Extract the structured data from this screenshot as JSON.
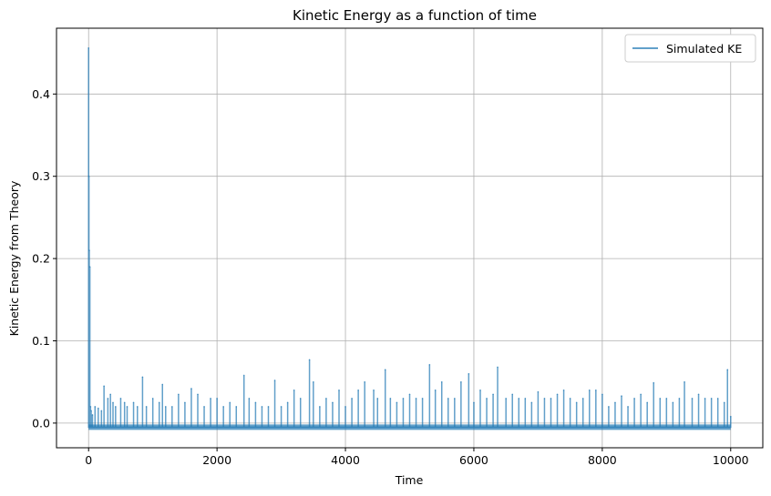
{
  "chart_data": {
    "type": "line",
    "title": "Kinetic Energy as a function of time",
    "xlabel": "Time",
    "ylabel": "Kinetic Energy from Theory",
    "xlim": [
      -500,
      10500
    ],
    "ylim": [
      -0.03,
      0.48
    ],
    "xticks": [
      0,
      2000,
      4000,
      6000,
      8000,
      10000
    ],
    "xtick_labels": [
      "0",
      "2000",
      "4000",
      "6000",
      "8000",
      "10000"
    ],
    "yticks": [
      0.0,
      0.1,
      0.2,
      0.3,
      0.4
    ],
    "ytick_labels": [
      "0.0",
      "0.1",
      "0.2",
      "0.3",
      "0.4"
    ],
    "grid": true,
    "legend_position": "top-right",
    "series": [
      {
        "name": "Simulated KE",
        "color": "#1f77b4",
        "alpha": 0.7,
        "baseline": -0.005,
        "x": [
          0,
          5,
          10,
          20,
          30,
          40,
          60,
          100,
          150,
          200,
          240,
          300,
          340,
          380,
          420,
          500,
          560,
          600,
          700,
          760,
          840,
          900,
          1000,
          1100,
          1150,
          1200,
          1300,
          1400,
          1500,
          1600,
          1700,
          1800,
          1900,
          2000,
          2100,
          2200,
          2300,
          2420,
          2500,
          2600,
          2700,
          2800,
          2900,
          3000,
          3100,
          3200,
          3300,
          3440,
          3500,
          3600,
          3700,
          3800,
          3900,
          4000,
          4100,
          4200,
          4300,
          4440,
          4500,
          4620,
          4700,
          4800,
          4900,
          5000,
          5100,
          5200,
          5310,
          5400,
          5500,
          5600,
          5700,
          5800,
          5920,
          6000,
          6100,
          6200,
          6300,
          6370,
          6500,
          6600,
          6700,
          6800,
          6900,
          7000,
          7100,
          7200,
          7300,
          7400,
          7500,
          7600,
          7700,
          7800,
          7900,
          8000,
          8100,
          8200,
          8300,
          8400,
          8500,
          8600,
          8700,
          8800,
          8900,
          9000,
          9100,
          9200,
          9280,
          9400,
          9500,
          9600,
          9700,
          9800,
          9900,
          9950,
          10000
        ],
        "y": [
          0.456,
          0.3,
          0.21,
          0.19,
          0.02,
          0.015,
          0.01,
          0.02,
          0.018,
          0.015,
          0.045,
          0.03,
          0.035,
          0.025,
          0.02,
          0.03,
          0.025,
          0.02,
          0.025,
          0.02,
          0.056,
          0.02,
          0.03,
          0.025,
          0.047,
          0.02,
          0.02,
          0.035,
          0.025,
          0.042,
          0.035,
          0.02,
          0.03,
          0.03,
          0.02,
          0.025,
          0.02,
          0.058,
          0.03,
          0.025,
          0.02,
          0.02,
          0.052,
          0.02,
          0.025,
          0.04,
          0.03,
          0.077,
          0.05,
          0.02,
          0.03,
          0.025,
          0.04,
          0.02,
          0.03,
          0.04,
          0.05,
          0.04,
          0.03,
          0.065,
          0.03,
          0.025,
          0.03,
          0.035,
          0.03,
          0.03,
          0.071,
          0.04,
          0.05,
          0.03,
          0.03,
          0.05,
          0.06,
          0.025,
          0.04,
          0.03,
          0.035,
          0.068,
          0.03,
          0.035,
          0.03,
          0.03,
          0.025,
          0.038,
          0.03,
          0.03,
          0.035,
          0.04,
          0.03,
          0.025,
          0.03,
          0.04,
          0.04,
          0.035,
          0.02,
          0.025,
          0.033,
          0.02,
          0.03,
          0.035,
          0.025,
          0.049,
          0.03,
          0.03,
          0.025,
          0.03,
          0.05,
          0.03,
          0.035,
          0.03,
          0.03,
          0.03,
          0.025,
          0.065,
          0.008
        ]
      }
    ]
  }
}
